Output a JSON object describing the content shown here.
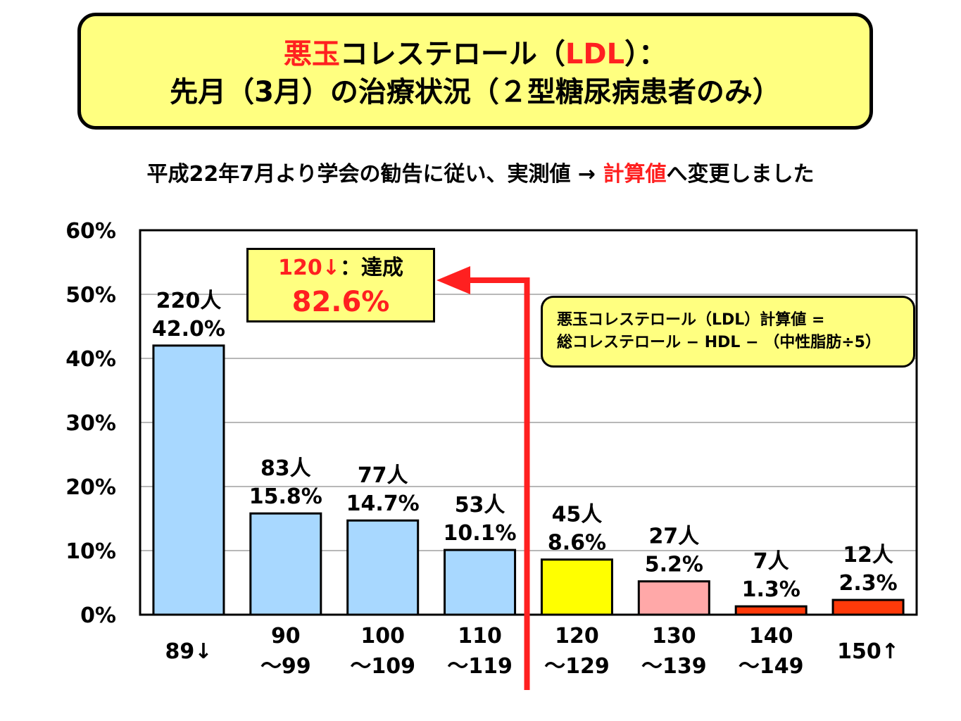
{
  "title": {
    "line1_red": "悪玉",
    "line1_mid": "コレステロール（",
    "line1_red2": "LDL",
    "line1_end": "）：",
    "line2": "先月（3月）の治療状況（２型糖尿病患者のみ）"
  },
  "subtitle": {
    "before": "平成22年7月より学会の勧告に従い、実測値 → ",
    "red": "計算値",
    "after": "へ変更しました"
  },
  "achievement": {
    "line1_red": "120↓",
    "line1_rest": "：達成",
    "value": "82.6%"
  },
  "formula": {
    "line1": "悪玉コレステロール（LDL）計算値 =",
    "line2": "総コレステロール − HDL − （中性脂肪÷5）"
  },
  "colors": {
    "accent_red": "#ff2020",
    "highlight_yellow": "#ffff80",
    "bar_blue": "#a8d8ff",
    "bar_yellow": "#ffff00",
    "bar_pink": "#ffa8a8",
    "bar_red": "#ff3a0a"
  },
  "chart_data": {
    "type": "bar",
    "categories": [
      "89↓",
      "90～99",
      "100～109",
      "110～119",
      "120～129",
      "130～139",
      "140～149",
      "150↑"
    ],
    "category_lines": [
      [
        "89↓"
      ],
      [
        "90",
        "～99"
      ],
      [
        "100",
        "～109"
      ],
      [
        "110",
        "～119"
      ],
      [
        "120",
        "～129"
      ],
      [
        "130",
        "～139"
      ],
      [
        "140",
        "～149"
      ],
      [
        "150↑"
      ]
    ],
    "values": [
      42.0,
      15.8,
      14.7,
      10.1,
      8.6,
      5.2,
      1.3,
      2.3
    ],
    "counts": [
      "220人",
      "83人",
      "77人",
      "53人",
      "45人",
      "27人",
      "7人",
      "12人"
    ],
    "percent_labels": [
      "42.0%",
      "15.8%",
      "14.7%",
      "10.1%",
      "8.6%",
      "5.2%",
      "1.3%",
      "2.3%"
    ],
    "bar_colors": [
      "#a8d8ff",
      "#a8d8ff",
      "#a8d8ff",
      "#a8d8ff",
      "#ffff00",
      "#ffa8a8",
      "#ff3a0a",
      "#ff3a0a"
    ],
    "ylim": [
      0,
      60
    ],
    "yticks": [
      "0%",
      "10%",
      "20%",
      "30%",
      "40%",
      "50%",
      "60%"
    ],
    "grid": true,
    "threshold_category": "120～129"
  }
}
